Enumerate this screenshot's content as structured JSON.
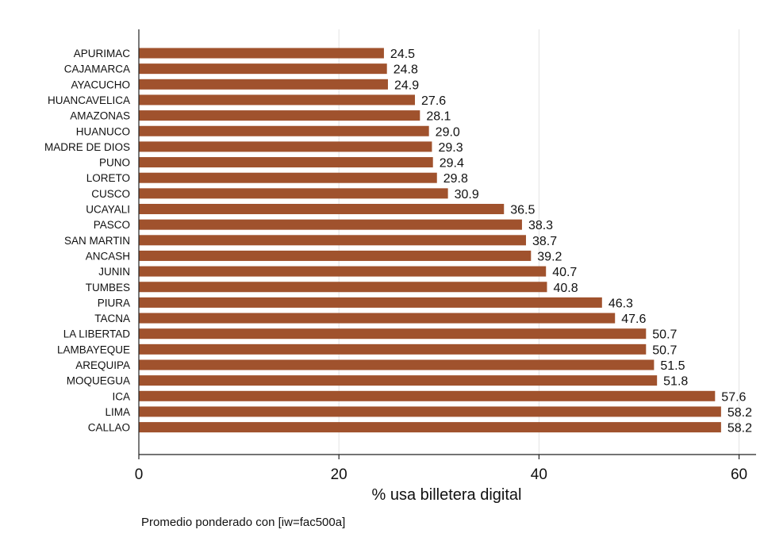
{
  "chart_data": {
    "type": "bar",
    "orientation": "horizontal",
    "categories": [
      "APURIMAC",
      "CAJAMARCA",
      "AYACUCHO",
      "HUANCAVELICA",
      "AMAZONAS",
      "HUANUCO",
      "MADRE DE DIOS",
      "PUNO",
      "LORETO",
      "CUSCO",
      "UCAYALI",
      "PASCO",
      "SAN MARTIN",
      "ANCASH",
      "JUNIN",
      "TUMBES",
      "PIURA",
      "TACNA",
      "LA LIBERTAD",
      "LAMBAYEQUE",
      "AREQUIPA",
      "MOQUEGUA",
      "ICA",
      "LIMA",
      "CALLAO"
    ],
    "values": [
      24.5,
      24.8,
      24.9,
      27.6,
      28.1,
      29.0,
      29.3,
      29.4,
      29.8,
      30.9,
      36.5,
      38.3,
      38.7,
      39.2,
      40.7,
      40.8,
      46.3,
      47.6,
      50.7,
      50.7,
      51.5,
      51.8,
      57.6,
      58.2,
      58.2
    ],
    "value_labels": [
      "24.5",
      "24.8",
      "24.9",
      "27.6",
      "28.1",
      "29.0",
      "29.3",
      "29.4",
      "29.8",
      "30.9",
      "36.5",
      "38.3",
      "38.7",
      "39.2",
      "40.7",
      "40.8",
      "46.3",
      "47.6",
      "50.7",
      "50.7",
      "51.5",
      "51.8",
      "57.6",
      "58.2",
      "58.2"
    ],
    "xlabel": "% usa billetera digital",
    "ylabel": "",
    "xlim": [
      0,
      61.7
    ],
    "x_ticks": [
      "0",
      "20",
      "40",
      "60"
    ],
    "grid": "vertical",
    "bar_color": "#A0522D",
    "note": "Promedio ponderado con [iw=fac500a]"
  }
}
